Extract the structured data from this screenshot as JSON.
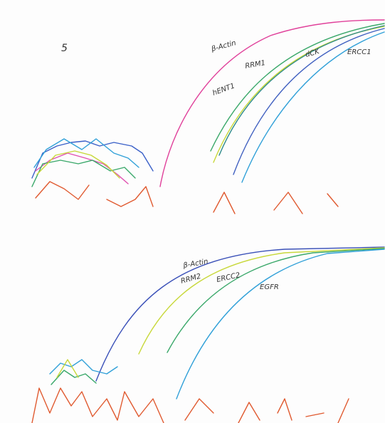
{
  "panels": [
    {
      "marker": "5",
      "labels": [
        "β-Actin",
        "RRM1",
        "hENT1",
        "dCK",
        "ERCC1"
      ]
    },
    {
      "labels": [
        "β-Actin",
        "RRM2",
        "ERCC2",
        "EGFR"
      ]
    }
  ]
}
